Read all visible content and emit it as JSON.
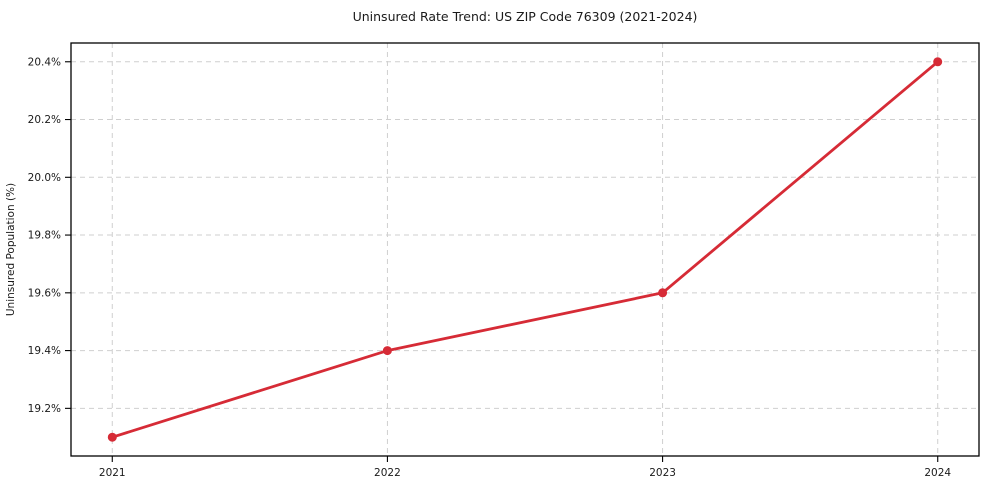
{
  "figure": {
    "background": "#ffffff"
  },
  "chart_data": {
    "type": "line",
    "title": "Uninsured Rate Trend: US ZIP Code 76309 (2021-2024)",
    "xlabel": "",
    "ylabel": "Uninsured Population (%)",
    "x": [
      2021,
      2022,
      2023,
      2024
    ],
    "categories": [
      "2021",
      "2022",
      "2023",
      "2024"
    ],
    "series": [
      {
        "name": "Uninsured rate",
        "values": [
          19.1,
          19.4,
          19.6,
          20.4
        ],
        "color": "#d62b36",
        "marker": "circle",
        "line_width": 2.8,
        "marker_radius": 4.5
      }
    ],
    "xlim": [
      2020.85,
      2024.15
    ],
    "ylim": [
      19.035,
      20.465
    ],
    "yticks": [
      19.2,
      19.4,
      19.6,
      19.8,
      20.0,
      20.2,
      20.4
    ],
    "ytick_labels": [
      "19.2%",
      "19.4%",
      "19.6%",
      "19.8%",
      "20.0%",
      "20.2%",
      "20.4%"
    ],
    "xticks": [
      2021,
      2022,
      2023,
      2024
    ],
    "xtick_labels": [
      "2021",
      "2022",
      "2023",
      "2024"
    ],
    "grid": true,
    "grid_style": "dashed",
    "grid_color": "#cfcfcf",
    "axis_color": "#000000",
    "text_color": "#1a1a1a",
    "legend_position": "none"
  }
}
